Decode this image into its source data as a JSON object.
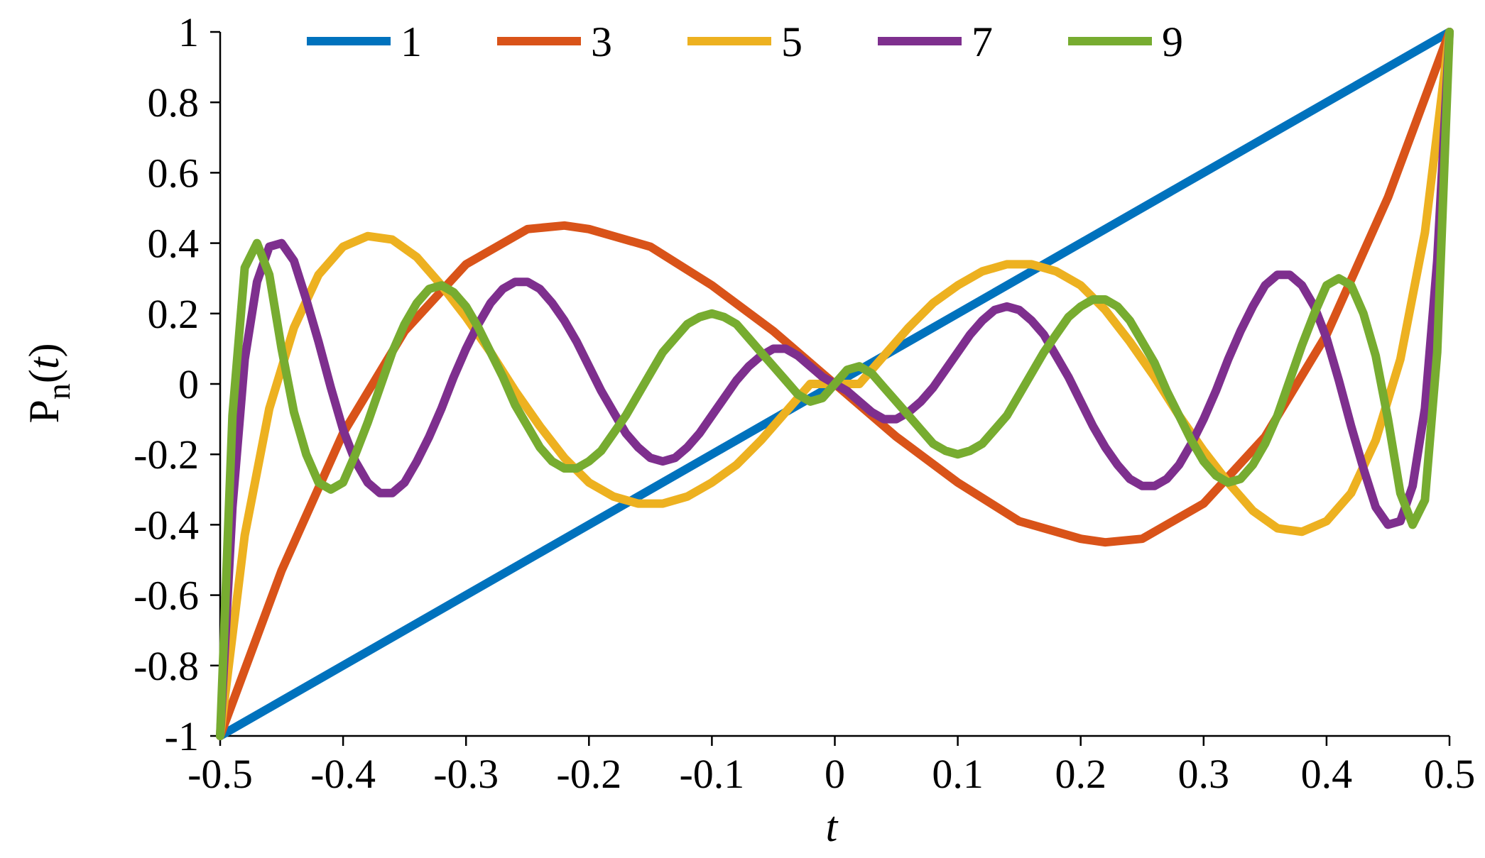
{
  "chart_data": {
    "type": "line",
    "title": "",
    "xlabel": "t",
    "ylabel": "P",
    "ylabel_sub": "n",
    "ylabel_arg": "t",
    "xlim": [
      -0.5,
      0.5
    ],
    "ylim": [
      -1,
      1
    ],
    "xticks": [
      -0.5,
      -0.4,
      -0.3,
      -0.2,
      -0.1,
      0,
      0.1,
      0.2,
      0.3,
      0.4,
      0.5
    ],
    "xtick_labels": [
      "-0.5",
      "-0.4",
      "-0.3",
      "-0.2",
      "-0.1",
      "0",
      "0.1",
      "0.2",
      "0.3",
      "0.4",
      "0.5"
    ],
    "yticks": [
      -1,
      -0.8,
      -0.6,
      -0.4,
      -0.2,
      0,
      0.2,
      0.4,
      0.6,
      0.8,
      1
    ],
    "ytick_labels": [
      "-1",
      "-0.8",
      "-0.6",
      "-0.4",
      "-0.2",
      "0",
      "0.2",
      "0.4",
      "0.6",
      "0.8",
      "1"
    ],
    "grid": false,
    "legend_position": "top",
    "series": [
      {
        "name": "1",
        "color": "#0072BD",
        "x": [
          -0.5,
          -0.3,
          -0.1,
          0.1,
          0.3,
          0.5
        ],
        "y": [
          -1,
          -0.6,
          -0.2,
          0.2,
          0.6,
          1
        ]
      },
      {
        "name": "3",
        "color": "#D95319",
        "x": [
          -0.5,
          -0.45,
          -0.4,
          -0.35,
          -0.3,
          -0.25,
          -0.22,
          -0.2,
          -0.15,
          -0.1,
          -0.05,
          0,
          0.05,
          0.1,
          0.15,
          0.2,
          0.22,
          0.25,
          0.3,
          0.35,
          0.4,
          0.45,
          0.5
        ],
        "y": [
          -1,
          -0.53,
          -0.14,
          0.15,
          0.34,
          0.44,
          0.45,
          0.44,
          0.39,
          0.28,
          0.15,
          0,
          -0.15,
          -0.28,
          -0.39,
          -0.44,
          -0.45,
          -0.44,
          -0.34,
          -0.15,
          0.14,
          0.53,
          1
        ]
      },
      {
        "name": "5",
        "color": "#EDB120",
        "x": [
          -0.5,
          -0.48,
          -0.46,
          -0.44,
          -0.42,
          -0.4,
          -0.38,
          -0.36,
          -0.34,
          -0.32,
          -0.3,
          -0.28,
          -0.26,
          -0.24,
          -0.22,
          -0.2,
          -0.18,
          -0.16,
          -0.14,
          -0.12,
          -0.1,
          -0.08,
          -0.06,
          -0.04,
          -0.02,
          0,
          0.02,
          0.04,
          0.06,
          0.08,
          0.1,
          0.12,
          0.14,
          0.16,
          0.18,
          0.2,
          0.22,
          0.24,
          0.26,
          0.28,
          0.3,
          0.32,
          0.34,
          0.36,
          0.38,
          0.4,
          0.42,
          0.44,
          0.46,
          0.48,
          0.5
        ],
        "y": [
          -1,
          -0.43,
          -0.07,
          0.16,
          0.31,
          0.39,
          0.42,
          0.41,
          0.36,
          0.28,
          0.19,
          0.09,
          -0.02,
          -0.12,
          -0.21,
          -0.28,
          -0.32,
          -0.34,
          -0.34,
          -0.32,
          -0.28,
          -0.23,
          -0.16,
          -0.08,
          0,
          0,
          0,
          0.08,
          0.16,
          0.23,
          0.28,
          0.32,
          0.34,
          0.34,
          0.32,
          0.28,
          0.21,
          0.12,
          0.02,
          -0.09,
          -0.19,
          -0.28,
          -0.36,
          -0.41,
          -0.42,
          -0.39,
          -0.31,
          -0.16,
          0.07,
          0.43,
          1
        ]
      },
      {
        "name": "7",
        "color": "#7E2F8E",
        "x": [
          -0.5,
          -0.49,
          -0.48,
          -0.47,
          -0.46,
          -0.45,
          -0.44,
          -0.43,
          -0.42,
          -0.41,
          -0.4,
          -0.39,
          -0.38,
          -0.37,
          -0.36,
          -0.35,
          -0.34,
          -0.33,
          -0.32,
          -0.31,
          -0.3,
          -0.29,
          -0.28,
          -0.27,
          -0.26,
          -0.25,
          -0.24,
          -0.23,
          -0.22,
          -0.21,
          -0.2,
          -0.19,
          -0.18,
          -0.17,
          -0.16,
          -0.15,
          -0.14,
          -0.13,
          -0.12,
          -0.11,
          -0.1,
          -0.09,
          -0.08,
          -0.07,
          -0.06,
          -0.05,
          -0.04,
          -0.03,
          -0.02,
          -0.01,
          0,
          0.01,
          0.02,
          0.03,
          0.04,
          0.05,
          0.06,
          0.07,
          0.08,
          0.09,
          0.1,
          0.11,
          0.12,
          0.13,
          0.14,
          0.15,
          0.16,
          0.17,
          0.18,
          0.19,
          0.2,
          0.21,
          0.22,
          0.23,
          0.24,
          0.25,
          0.26,
          0.27,
          0.28,
          0.29,
          0.3,
          0.31,
          0.32,
          0.33,
          0.34,
          0.35,
          0.36,
          0.37,
          0.38,
          0.39,
          0.4,
          0.41,
          0.42,
          0.43,
          0.44,
          0.45,
          0.46,
          0.47,
          0.48,
          0.49,
          0.5
        ],
        "y": [
          -1,
          -0.35,
          0.07,
          0.29,
          0.39,
          0.4,
          0.35,
          0.24,
          0.12,
          -0.01,
          -0.13,
          -0.22,
          -0.28,
          -0.31,
          -0.31,
          -0.28,
          -0.22,
          -0.15,
          -0.07,
          0.02,
          0.1,
          0.17,
          0.23,
          0.27,
          0.29,
          0.29,
          0.27,
          0.23,
          0.18,
          0.12,
          0.05,
          -0.02,
          -0.08,
          -0.14,
          -0.18,
          -0.21,
          -0.22,
          -0.21,
          -0.18,
          -0.14,
          -0.09,
          -0.04,
          0.01,
          0.05,
          0.08,
          0.1,
          0.1,
          0.08,
          0.05,
          0.02,
          0,
          -0.02,
          -0.05,
          -0.08,
          -0.1,
          -0.1,
          -0.08,
          -0.05,
          -0.01,
          0.04,
          0.09,
          0.14,
          0.18,
          0.21,
          0.22,
          0.21,
          0.18,
          0.14,
          0.08,
          0.02,
          -0.05,
          -0.12,
          -0.18,
          -0.23,
          -0.27,
          -0.29,
          -0.29,
          -0.27,
          -0.23,
          -0.17,
          -0.1,
          -0.02,
          0.07,
          0.15,
          0.22,
          0.28,
          0.31,
          0.31,
          0.28,
          0.22,
          0.13,
          0.01,
          -0.12,
          -0.24,
          -0.35,
          -0.4,
          -0.39,
          -0.29,
          -0.07,
          0.35,
          1
        ]
      },
      {
        "name": "9",
        "color": "#77AC30",
        "x": [
          -0.5,
          -0.49,
          -0.48,
          -0.47,
          -0.46,
          -0.45,
          -0.44,
          -0.43,
          -0.42,
          -0.41,
          -0.4,
          -0.39,
          -0.38,
          -0.37,
          -0.36,
          -0.35,
          -0.34,
          -0.33,
          -0.32,
          -0.31,
          -0.3,
          -0.29,
          -0.28,
          -0.27,
          -0.26,
          -0.25,
          -0.24,
          -0.23,
          -0.22,
          -0.21,
          -0.2,
          -0.19,
          -0.18,
          -0.17,
          -0.16,
          -0.15,
          -0.14,
          -0.13,
          -0.12,
          -0.11,
          -0.1,
          -0.09,
          -0.08,
          -0.07,
          -0.06,
          -0.05,
          -0.04,
          -0.03,
          -0.02,
          -0.01,
          0,
          0.01,
          0.02,
          0.03,
          0.04,
          0.05,
          0.06,
          0.07,
          0.08,
          0.09,
          0.1,
          0.11,
          0.12,
          0.13,
          0.14,
          0.15,
          0.16,
          0.17,
          0.18,
          0.19,
          0.2,
          0.21,
          0.22,
          0.23,
          0.24,
          0.25,
          0.26,
          0.27,
          0.28,
          0.29,
          0.3,
          0.31,
          0.32,
          0.33,
          0.34,
          0.35,
          0.36,
          0.37,
          0.38,
          0.39,
          0.4,
          0.41,
          0.42,
          0.43,
          0.44,
          0.45,
          0.46,
          0.47,
          0.48,
          0.49,
          0.5
        ],
        "y": [
          -1,
          -0.09,
          0.33,
          0.4,
          0.31,
          0.1,
          -0.08,
          -0.2,
          -0.28,
          -0.3,
          -0.28,
          -0.2,
          -0.11,
          -0.01,
          0.09,
          0.17,
          0.23,
          0.27,
          0.28,
          0.26,
          0.22,
          0.16,
          0.09,
          0.02,
          -0.06,
          -0.12,
          -0.18,
          -0.22,
          -0.24,
          -0.24,
          -0.22,
          -0.19,
          -0.14,
          -0.09,
          -0.03,
          0.03,
          0.09,
          0.13,
          0.17,
          0.19,
          0.2,
          0.19,
          0.17,
          0.13,
          0.09,
          0.05,
          0.01,
          -0.03,
          -0.05,
          -0.04,
          0,
          0.04,
          0.05,
          0.03,
          -0.01,
          -0.05,
          -0.09,
          -0.13,
          -0.17,
          -0.19,
          -0.2,
          -0.19,
          -0.17,
          -0.13,
          -0.09,
          -0.03,
          0.03,
          0.09,
          0.14,
          0.19,
          0.22,
          0.24,
          0.24,
          0.22,
          0.18,
          0.12,
          0.06,
          -0.02,
          -0.09,
          -0.16,
          -0.22,
          -0.26,
          -0.28,
          -0.27,
          -0.23,
          -0.17,
          -0.09,
          0.01,
          0.11,
          0.2,
          0.28,
          0.3,
          0.28,
          0.2,
          0.08,
          -0.1,
          -0.31,
          -0.4,
          -0.33,
          0.09,
          1
        ]
      }
    ]
  }
}
